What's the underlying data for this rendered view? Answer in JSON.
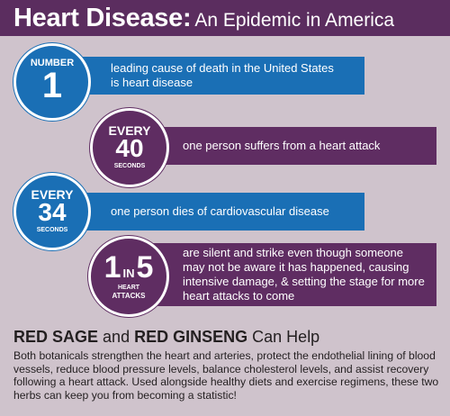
{
  "header": {
    "title_strong": "Heart Disease:",
    "title_light": "An Epidemic in America"
  },
  "facts": [
    {
      "badge_top": "NUMBER",
      "badge_big": "1",
      "badge_bottom": "",
      "text": "leading cause of death in the United States is heart disease",
      "color": "#1a6fb5"
    },
    {
      "badge_top": "EVERY",
      "badge_big": "40",
      "badge_bottom": "SECONDS",
      "text": "one person suffers from a heart attack",
      "color": "#5f2d62"
    },
    {
      "badge_top": "EVERY",
      "badge_big": "34",
      "badge_bottom": "SECONDS",
      "text": "one person dies of cardiovascular disease",
      "color": "#1a6fb5"
    },
    {
      "badge_big_a": "1",
      "badge_mid": "IN",
      "badge_big_b": "5",
      "badge_bottom_1": "HEART",
      "badge_bottom_2": "ATTACKS",
      "text": "are silent and strike even though someone may not be aware it has happened, causing intensive damage, & setting the stage for more heart attacks to come",
      "color": "#5f2d62"
    }
  ],
  "help": {
    "herb1": "RED SAGE",
    "and": "and",
    "herb2": "RED GINSENG",
    "suffix": "Can Help",
    "body": "Both botanicals strengthen the heart and arteries, protect the endothelial lining of blood vessels, reduce blood pressure levels, balance cholesterol levels, and assist recovery following a heart attack. Used alongside healthy diets and exercise regimens, these two herbs can keep you from becoming a statistic!"
  }
}
